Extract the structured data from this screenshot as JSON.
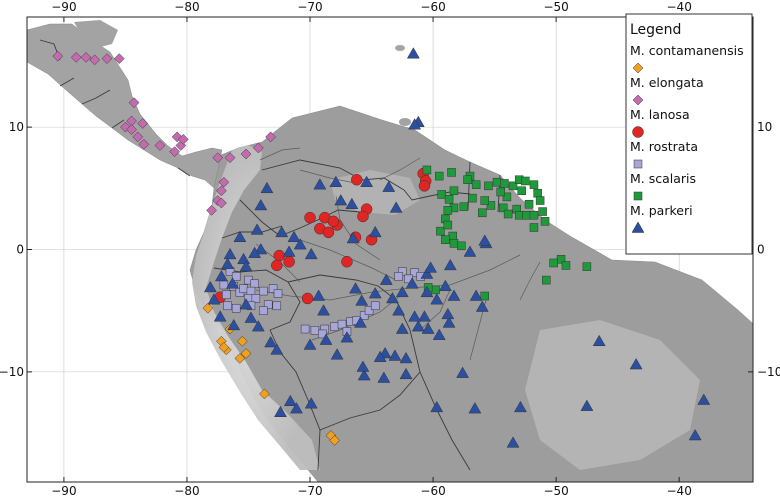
{
  "map": {
    "lon_range": [
      -93,
      -34
    ],
    "lat_range": [
      -19,
      19
    ],
    "x_ticks": [
      -90,
      -80,
      -70,
      -60,
      -50,
      -40
    ],
    "y_ticks": [
      10,
      0,
      -10
    ],
    "x_tick_labels": [
      "−90",
      "−80",
      "−70",
      "−60",
      "−50",
      "−40"
    ],
    "y_tick_labels": [
      "10",
      "0",
      "−10"
    ],
    "colors": {
      "ocean": "#ffffff",
      "land": "#9d9d9d",
      "highland": "#dadada",
      "border": "#3a3a3a",
      "river": "#505050",
      "grid": "#c8c8c8"
    }
  },
  "legend": {
    "title": "Legend",
    "items": [
      {
        "label": "M. contamanensis",
        "shape": "diamond",
        "color": "#f0a020"
      },
      {
        "label": "M. elongata",
        "shape": "diamond",
        "color": "#c46aae"
      },
      {
        "label": "M. lanosa",
        "shape": "circle",
        "color": "#e02525"
      },
      {
        "label": "M. rostrata",
        "shape": "square",
        "color": "#a6a6d8"
      },
      {
        "label": "M. scalaris",
        "shape": "square",
        "color": "#1f9a3a"
      },
      {
        "label": "M. parkeri",
        "shape": "triangle",
        "color": "#2c4fa0"
      }
    ]
  },
  "records": [
    {
      "species": "M. contamanensis",
      "points": [
        [
          -78.3,
          -4.8
        ],
        [
          -76.5,
          -6.5
        ],
        [
          -75.5,
          -7.5
        ],
        [
          -77.2,
          -7.5
        ],
        [
          -76.8,
          -8.2
        ],
        [
          -75.7,
          -8.9
        ],
        [
          -75.2,
          -8.5
        ],
        [
          -73.7,
          -11.8
        ],
        [
          -68.3,
          -15.2
        ],
        [
          -68,
          -15.6
        ],
        [
          -77,
          -8
        ]
      ]
    },
    {
      "species": "M. elongata",
      "points": [
        [
          -90.5,
          15.8
        ],
        [
          -89,
          15.7
        ],
        [
          -88.2,
          15.7
        ],
        [
          -87.5,
          15.5
        ],
        [
          -86.5,
          15.6
        ],
        [
          -85.5,
          15.6
        ],
        [
          -84.3,
          12
        ],
        [
          -84.5,
          10.5
        ],
        [
          -85,
          10
        ],
        [
          -83.6,
          10.3
        ],
        [
          -84.5,
          9.8
        ],
        [
          -84,
          9.2
        ],
        [
          -83.5,
          8.6
        ],
        [
          -82.2,
          8.5
        ],
        [
          -80.5,
          8.5
        ],
        [
          -81,
          8
        ],
        [
          -80.8,
          9.2
        ],
        [
          -80.3,
          9
        ],
        [
          -77.5,
          7.5
        ],
        [
          -76.5,
          7.5
        ],
        [
          -75.2,
          7.8
        ],
        [
          -74.2,
          8.3
        ],
        [
          -73.2,
          9.2
        ],
        [
          -77,
          5.5
        ],
        [
          -77.2,
          4.8
        ],
        [
          -77.5,
          4
        ],
        [
          -77.2,
          3.8
        ],
        [
          -78,
          3.2
        ]
      ]
    },
    {
      "species": "M. lanosa",
      "points": [
        [
          -66.2,
          5.7
        ],
        [
          -60.8,
          6.2
        ],
        [
          -60.6,
          5.6
        ],
        [
          -60.7,
          5.2
        ],
        [
          -65.4,
          3.3
        ],
        [
          -65.7,
          2.7
        ],
        [
          -68.8,
          2.6
        ],
        [
          -67.8,
          2
        ],
        [
          -68.1,
          2.3
        ],
        [
          -70,
          2.6
        ],
        [
          -69.2,
          1.7
        ],
        [
          -68.5,
          1.4
        ],
        [
          -66.3,
          1
        ],
        [
          -65,
          0.8
        ],
        [
          -67,
          -1
        ],
        [
          -72.5,
          -0.5
        ],
        [
          -71.7,
          -1
        ],
        [
          -72.7,
          -1.3
        ],
        [
          -77.3,
          -3.9
        ],
        [
          -70.2,
          -4
        ]
      ]
    },
    {
      "species": "M. rostrata",
      "points": [
        [
          -76.5,
          -1.8
        ],
        [
          -76,
          -2.2
        ],
        [
          -75,
          -2.5
        ],
        [
          -74.5,
          -2.8
        ],
        [
          -77,
          -2.9
        ],
        [
          -76.2,
          -3
        ],
        [
          -75.7,
          -3.5
        ],
        [
          -76.8,
          -3.7
        ],
        [
          -75.4,
          -3.2
        ],
        [
          -74.8,
          -3.4
        ],
        [
          -73.8,
          -3.4
        ],
        [
          -73,
          -3.2
        ],
        [
          -72.6,
          -3.6
        ],
        [
          -75,
          -4
        ],
        [
          -74.4,
          -4
        ],
        [
          -73.4,
          -4.5
        ],
        [
          -72.7,
          -4.6
        ],
        [
          -74.8,
          -4.6
        ],
        [
          -76,
          -4.8
        ],
        [
          -76.7,
          -4.6
        ],
        [
          -73.8,
          -5
        ],
        [
          -70.4,
          -6.5
        ],
        [
          -69.6,
          -6.6
        ],
        [
          -68.8,
          -6.5
        ],
        [
          -68,
          -6.3
        ],
        [
          -67.4,
          -6.1
        ],
        [
          -66.7,
          -5.9
        ],
        [
          -66.2,
          -5.8
        ],
        [
          -65.6,
          -5.4
        ],
        [
          -65.2,
          -5
        ],
        [
          -64.7,
          -4.6
        ],
        [
          -67,
          -6.7
        ],
        [
          -69,
          -6.9
        ],
        [
          -62.5,
          -1.8
        ],
        [
          -61.5,
          -1.9
        ],
        [
          -62,
          -2.4
        ],
        [
          -61,
          -2.2
        ],
        [
          -62.8,
          -2.2
        ]
      ]
    },
    {
      "species": "M. scalaris",
      "points": [
        [
          -60.5,
          6.5
        ],
        [
          -59.5,
          6
        ],
        [
          -58.5,
          6.3
        ],
        [
          -57,
          6
        ],
        [
          -59.3,
          4.5
        ],
        [
          -58.7,
          4.1
        ],
        [
          -58.3,
          4.8
        ],
        [
          -57.2,
          5.7
        ],
        [
          -56.5,
          5.3
        ],
        [
          -55.5,
          5.2
        ],
        [
          -54.8,
          5.5
        ],
        [
          -54.2,
          5.4
        ],
        [
          -53.5,
          5.2
        ],
        [
          -53,
          5.7
        ],
        [
          -52.5,
          5.6
        ],
        [
          -51.8,
          5.3
        ],
        [
          -52.8,
          4.8
        ],
        [
          -54,
          4.3
        ],
        [
          -54.5,
          4.7
        ],
        [
          -51.5,
          4.6
        ],
        [
          -51.3,
          4
        ],
        [
          -52.2,
          3.7
        ],
        [
          -53.2,
          3.3
        ],
        [
          -54.3,
          3.4
        ],
        [
          -55.3,
          3.6
        ],
        [
          -55.8,
          4
        ],
        [
          -56,
          3
        ],
        [
          -56.8,
          4.2
        ],
        [
          -57.5,
          3.5
        ],
        [
          -58.3,
          3.4
        ],
        [
          -58.8,
          3.2
        ],
        [
          -59,
          2.5
        ],
        [
          -59.4,
          1.5
        ],
        [
          -58.8,
          2
        ],
        [
          -58.4,
          1.1
        ],
        [
          -58.3,
          0.5
        ],
        [
          -59,
          0.8
        ],
        [
          -57.7,
          0.3
        ],
        [
          -53,
          2.8
        ],
        [
          -52.4,
          2.8
        ],
        [
          -51.8,
          2.8
        ],
        [
          -51.1,
          3.1
        ],
        [
          -50.9,
          2.3
        ],
        [
          -51.8,
          1.8
        ],
        [
          -53.9,
          2.9
        ],
        [
          -49.6,
          -0.8
        ],
        [
          -50.2,
          -1.1
        ],
        [
          -49.2,
          -1.3
        ],
        [
          -47.5,
          -1.4
        ],
        [
          -50.8,
          -2.5
        ],
        [
          -55.8,
          -3.8
        ],
        [
          -59.8,
          -3.3
        ],
        [
          -60.4,
          -3.1
        ]
      ]
    },
    {
      "species": "M. parkeri",
      "points": [
        [
          -61.6,
          16
        ],
        [
          -61.2,
          10.4
        ],
        [
          -61.5,
          10.2
        ],
        [
          -74,
          3.6
        ],
        [
          -73.5,
          5
        ],
        [
          -69.2,
          5.3
        ],
        [
          -67.9,
          5.5
        ],
        [
          -65.4,
          5.5
        ],
        [
          -63.6,
          5.1
        ],
        [
          -66.6,
          3.7
        ],
        [
          -63,
          3.4
        ],
        [
          -74.3,
          1.6
        ],
        [
          -75.7,
          1
        ],
        [
          -72.3,
          1.4
        ],
        [
          -71.3,
          1
        ],
        [
          -70.8,
          0.4
        ],
        [
          -69.9,
          -0.4
        ],
        [
          -71.7,
          -0.2
        ],
        [
          -74,
          0
        ],
        [
          -74.5,
          -0.3
        ],
        [
          -75.4,
          -0.8
        ],
        [
          -75.2,
          -1.4
        ],
        [
          -76.5,
          -0.4
        ],
        [
          -76.7,
          -1.2
        ],
        [
          -77.2,
          -2.2
        ],
        [
          -76.3,
          -2.8
        ],
        [
          -78.1,
          -3.1
        ],
        [
          -77.8,
          -4.1
        ],
        [
          -77.3,
          -5.5
        ],
        [
          -76.2,
          -6.2
        ],
        [
          -75.2,
          -4.5
        ],
        [
          -74.8,
          -5.6
        ],
        [
          -74.2,
          -6.3
        ],
        [
          -73.2,
          -7.6
        ],
        [
          -72.7,
          -8.2
        ],
        [
          -69.3,
          -3.8
        ],
        [
          -68.9,
          -5
        ],
        [
          -66.3,
          -3.2
        ],
        [
          -65.8,
          -4.2
        ],
        [
          -64.7,
          -3.6
        ],
        [
          -63.3,
          -4
        ],
        [
          -62.5,
          -3.5
        ],
        [
          -62.8,
          -5
        ],
        [
          -61.7,
          -2.8
        ],
        [
          -60.5,
          -2
        ],
        [
          -60.5,
          -3.5
        ],
        [
          -59.7,
          -4.1
        ],
        [
          -59,
          -3
        ],
        [
          -58.3,
          -3.8
        ],
        [
          -56,
          -4.7
        ],
        [
          -57,
          -0.2
        ],
        [
          -55.7,
          0.5
        ],
        [
          -62.5,
          -6.5
        ],
        [
          -63.9,
          -8.5
        ],
        [
          -64.3,
          -8.8
        ],
        [
          -63.1,
          -8.7
        ],
        [
          -62.2,
          -8.9
        ],
        [
          -64,
          -10.5
        ],
        [
          -62.2,
          -10.2
        ],
        [
          -57.6,
          -10.1
        ],
        [
          -59.7,
          -12.9
        ],
        [
          -56.6,
          -13
        ],
        [
          -52.9,
          -12.9
        ],
        [
          -53.5,
          -15.8
        ],
        [
          -47.5,
          -12.8
        ],
        [
          -43.5,
          -9.4
        ],
        [
          -46.5,
          -7.5
        ],
        [
          -38,
          -12.3
        ],
        [
          -38.7,
          -15.2
        ],
        [
          -65.9,
          -6
        ],
        [
          -67,
          -7.2
        ],
        [
          -65.6,
          -10.3
        ],
        [
          -69.9,
          -12.6
        ],
        [
          -71.6,
          -12.4
        ],
        [
          -72.4,
          -13.3
        ],
        [
          -71.1,
          -13
        ],
        [
          -70,
          -7.8
        ],
        [
          -68.7,
          -7.4
        ],
        [
          -67.8,
          -8.6
        ],
        [
          -65.7,
          -9.6
        ],
        [
          -61.2,
          -6.3
        ],
        [
          -60.4,
          -6.5
        ],
        [
          -58.7,
          -6
        ],
        [
          -58.8,
          -5.3
        ],
        [
          -60.7,
          -5.5
        ],
        [
          -61.5,
          -5.5
        ],
        [
          -59.5,
          -7
        ],
        [
          -56.5,
          -3.8
        ],
        [
          -60.2,
          -1.5
        ],
        [
          -58.6,
          -1.3
        ],
        [
          -55.8,
          0.7
        ],
        [
          -63.8,
          -2.5
        ],
        [
          -66.5,
          0.9
        ],
        [
          -64.7,
          1.4
        ],
        [
          -67.5,
          4
        ]
      ]
    }
  ]
}
